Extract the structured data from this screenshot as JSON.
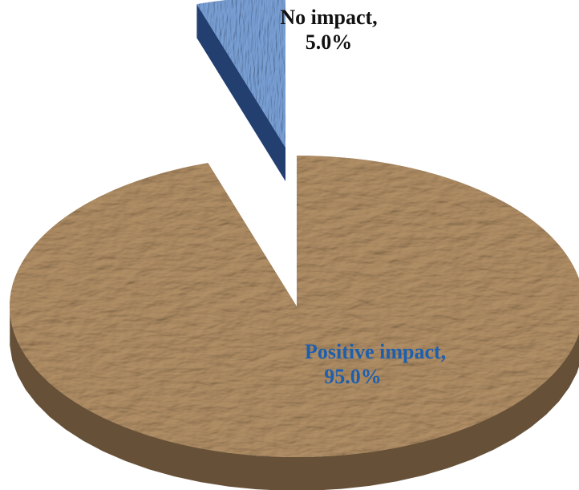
{
  "chart_data": {
    "type": "pie",
    "three_d": true,
    "exploded": "No impact",
    "slices": [
      {
        "label": "Positive impact,",
        "value": 95.0,
        "value_label": "95.0%",
        "color": "#a4835a"
      },
      {
        "label": "No impact,",
        "value": 5.0,
        "value_label": "5.0%",
        "color": "#6d95cf"
      }
    ],
    "legend": "none"
  }
}
